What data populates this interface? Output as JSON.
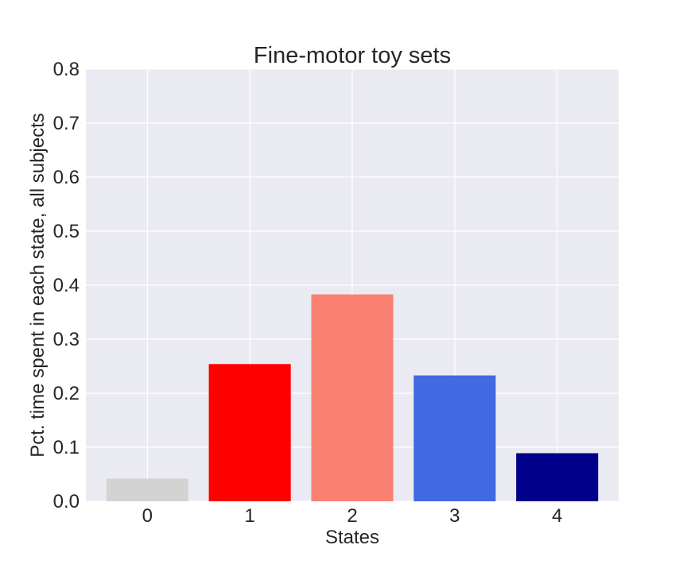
{
  "chart_data": {
    "type": "bar",
    "title": "Fine-motor toy sets",
    "xlabel": "States",
    "ylabel": "Pct. time spent in each state, all subjects",
    "categories": [
      "0",
      "1",
      "2",
      "3",
      "4"
    ],
    "values": [
      0.042,
      0.254,
      0.383,
      0.233,
      0.089
    ],
    "colors": [
      "#d3d3d3",
      "#ff0000",
      "#fa8072",
      "#4169e1",
      "#00008b"
    ],
    "ylim": [
      0,
      0.8
    ],
    "yticks": [
      "0.0",
      "0.1",
      "0.2",
      "0.3",
      "0.4",
      "0.5",
      "0.6",
      "0.7",
      "0.8"
    ],
    "grid": true,
    "background": "#eaeaf2"
  }
}
